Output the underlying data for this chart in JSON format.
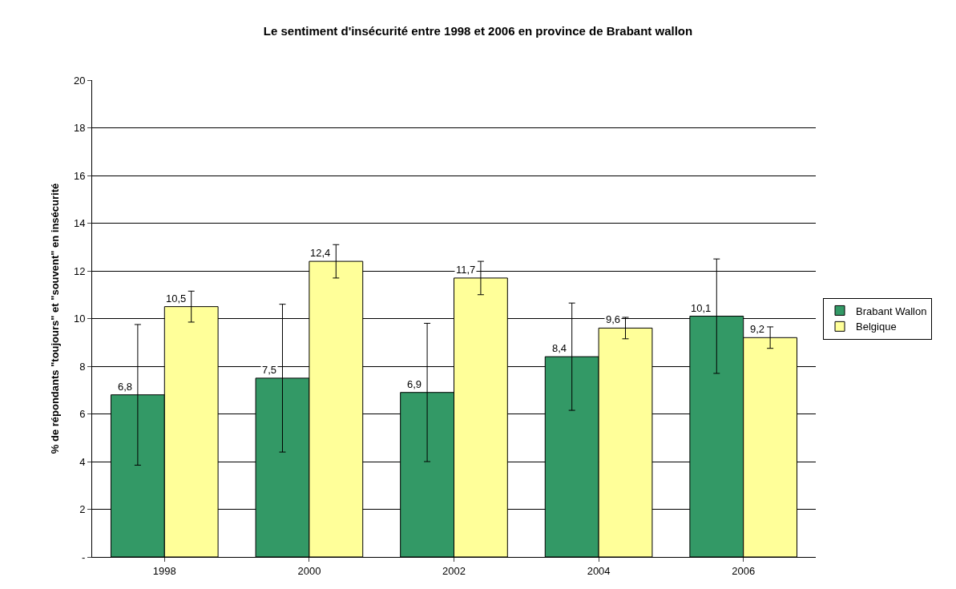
{
  "chart_data": {
    "type": "bar",
    "title": "Le sentiment d'insécurité entre 1998 et 2006 en province de Brabant wallon",
    "ylabel": "% de répondants \"toujours\" et \"souvent\" en insécurité",
    "categories": [
      "1998",
      "2000",
      "2002",
      "2004",
      "2006"
    ],
    "series": [
      {
        "name": "Brabant Wallon",
        "color": "#339966",
        "values": [
          6.8,
          7.5,
          6.9,
          8.4,
          10.1
        ],
        "value_labels": [
          "6,8",
          "7,5",
          "6,9",
          "8,4",
          "10,1"
        ],
        "errors": [
          2.95,
          3.1,
          2.9,
          2.25,
          2.4
        ]
      },
      {
        "name": "Belgique",
        "color": "#ffff99",
        "values": [
          10.5,
          12.4,
          11.7,
          9.6,
          9.2
        ],
        "value_labels": [
          "10,5",
          "12,4",
          "11,7",
          "9,6",
          "9,2"
        ],
        "errors": [
          0.65,
          0.7,
          0.7,
          0.45,
          0.45
        ]
      }
    ],
    "ylim": [
      0,
      20
    ],
    "yticks": [
      {
        "value": 0,
        "label": "-"
      },
      2,
      4,
      6,
      8,
      10,
      12,
      14,
      16,
      18,
      20
    ],
    "grid": "y",
    "legend": "right"
  }
}
